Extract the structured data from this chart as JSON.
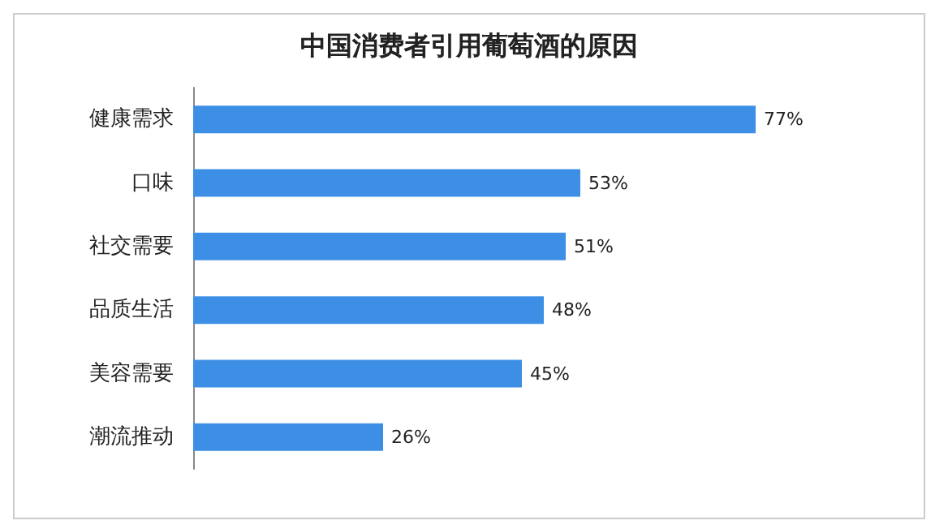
{
  "chart_data": {
    "type": "bar",
    "orientation": "horizontal",
    "title": "中国消费者引用葡萄酒的原因",
    "categories": [
      "健康需求",
      "口味",
      "社交需要",
      "品质生活",
      "美容需要",
      "潮流推动"
    ],
    "values": [
      77,
      53,
      51,
      48,
      45,
      26
    ],
    "value_labels": [
      "77%",
      "53%",
      "51%",
      "48%",
      "45%",
      "26%"
    ],
    "color": "#3d8fe6",
    "tick_labels": "y"
  }
}
